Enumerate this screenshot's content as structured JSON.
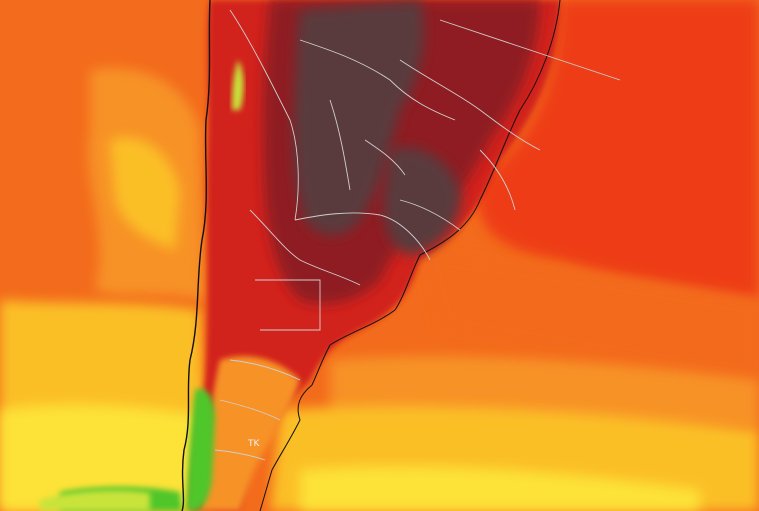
{
  "map": {
    "labels": {
      "region_tag": "TK"
    },
    "colors": {
      "very_hot": "#5a3a3e",
      "hot_dark": "#8f1f22",
      "hot": "#d2201a",
      "red_orange": "#ee3c17",
      "orange": "#f36b1c",
      "orange_light": "#f79227",
      "yellow_orange": "#fbbf27",
      "yellow": "#fde237",
      "yellow_green": "#c9e33a",
      "green": "#4fc62c",
      "black_lines": "#111111",
      "borders": "#cfcfcf"
    }
  }
}
